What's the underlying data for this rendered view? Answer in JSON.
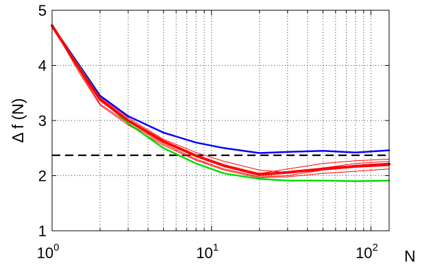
{
  "chart_data": {
    "type": "line",
    "xlabel": "N",
    "ylabel": "Δ f (N)",
    "xscale": "log",
    "xlim": [
      1,
      130
    ],
    "ylim": [
      1,
      5
    ],
    "x_ticks": [
      {
        "value": 1,
        "base": "10",
        "exp": "0"
      },
      {
        "value": 10,
        "base": "10",
        "exp": "1"
      },
      {
        "value": 100,
        "base": "10",
        "exp": "2"
      }
    ],
    "y_ticks": [
      1,
      2,
      3,
      4,
      5
    ],
    "grid": true,
    "grid_style": "dotted",
    "reference_line": {
      "y": 2.37,
      "style": "dashed",
      "color": "#000000"
    },
    "series": [
      {
        "color": "#ff0000",
        "width": 1,
        "x": [
          1,
          1.5,
          2,
          3,
          5,
          8,
          12,
          20,
          30,
          50,
          80,
          130
        ],
        "y": [
          4.72,
          3.95,
          3.38,
          3.02,
          2.62,
          2.37,
          2.18,
          2.04,
          2.12,
          2.22,
          2.27,
          2.3
        ]
      },
      {
        "color": "#ff0000",
        "width": 1,
        "x": [
          1,
          1.5,
          2,
          3,
          5,
          8,
          12,
          20,
          30,
          50,
          80,
          130
        ],
        "y": [
          4.72,
          3.88,
          3.3,
          2.95,
          2.58,
          2.3,
          2.12,
          1.98,
          2.0,
          2.1,
          2.15,
          2.18
        ]
      },
      {
        "color": "#ff0000",
        "width": 1,
        "x": [
          1,
          1.5,
          2,
          3,
          5,
          8,
          12,
          20,
          30,
          50,
          80,
          130
        ],
        "y": [
          4.72,
          3.92,
          3.42,
          3.05,
          2.66,
          2.42,
          2.26,
          2.1,
          2.06,
          2.14,
          2.22,
          2.26
        ]
      },
      {
        "color": "#ff0000",
        "width": 1,
        "x": [
          1,
          1.5,
          2,
          3,
          5,
          8,
          12,
          20,
          30,
          50,
          80,
          130
        ],
        "y": [
          4.72,
          3.84,
          3.28,
          2.92,
          2.55,
          2.28,
          2.1,
          1.96,
          1.98,
          2.04,
          2.08,
          2.12
        ]
      },
      {
        "color": "#0000ff",
        "width": 2.5,
        "x": [
          1,
          1.5,
          2,
          3,
          5,
          8,
          12,
          20,
          30,
          50,
          80,
          130
        ],
        "y": [
          4.72,
          3.98,
          3.45,
          3.08,
          2.78,
          2.6,
          2.5,
          2.41,
          2.43,
          2.45,
          2.42,
          2.46
        ]
      },
      {
        "color": "#00dd00",
        "width": 2.5,
        "x": [
          1,
          1.5,
          2,
          3,
          5,
          8,
          12,
          20,
          30,
          50,
          80,
          130
        ],
        "y": [
          4.72,
          3.95,
          3.4,
          2.95,
          2.5,
          2.22,
          2.04,
          1.94,
          1.91,
          1.91,
          1.9,
          1.91
        ]
      },
      {
        "color": "#ff0000",
        "width": 4,
        "x": [
          1,
          1.5,
          2,
          3,
          5,
          8,
          12,
          20,
          30,
          50,
          80,
          130
        ],
        "y": [
          4.72,
          3.92,
          3.38,
          3.0,
          2.62,
          2.36,
          2.18,
          2.02,
          2.06,
          2.12,
          2.17,
          2.21
        ]
      }
    ]
  }
}
